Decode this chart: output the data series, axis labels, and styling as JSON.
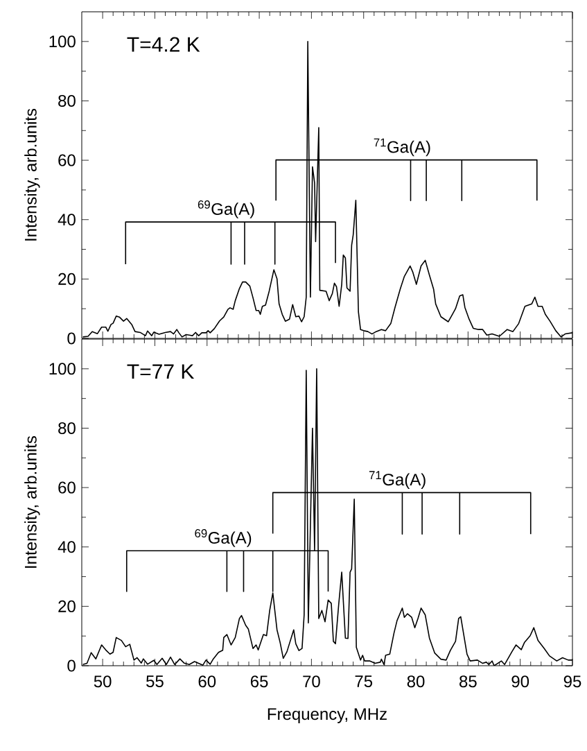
{
  "chart_data": [
    {
      "type": "line",
      "ylabel": "Intensity, arb.units",
      "xlim": [
        48,
        95
      ],
      "xticks": [
        50,
        55,
        60,
        65,
        70,
        75,
        80,
        85,
        90,
        95
      ],
      "ylim": [
        0,
        110
      ],
      "yticks": [
        0,
        20,
        40,
        60,
        80,
        100
      ],
      "tick_labels": "y",
      "line_style": "solid",
      "annotations": [
        "T=4.2 K",
        "$^{69}$Ga(A)",
        "$^{71}$Ga(A)"
      ],
      "series": [
        {
          "color": "#000000",
          "x": [
            48.1,
            48.6,
            49.0,
            49.5,
            49.9,
            50.3,
            50.5,
            50.8,
            51.0,
            51.3,
            51.6,
            52.0,
            52.3,
            52.8,
            53.1,
            53.6,
            54.1,
            54.3,
            54.7,
            54.9,
            55.4,
            56.0,
            56.5,
            56.8,
            57.1,
            57.3,
            57.6,
            58.0,
            58.3,
            58.6,
            58.9,
            59.2,
            59.5,
            59.9,
            60.1,
            60.3,
            60.7,
            61.2,
            61.6,
            62.0,
            62.2,
            62.5,
            62.7,
            63.1,
            63.4,
            63.7,
            64.1,
            64.4,
            64.7,
            64.95,
            65.1,
            65.3,
            65.6,
            65.95,
            66.4,
            66.7,
            66.9,
            67.2,
            67.5,
            67.9,
            68.2,
            68.5,
            68.8,
            69.05,
            69.3,
            69.5,
            69.65,
            69.9,
            70.1,
            70.3,
            70.4,
            70.7,
            70.8,
            71.4,
            71.7,
            72.0,
            72.2,
            72.4,
            72.65,
            72.9,
            73.05,
            73.25,
            73.4,
            73.7,
            73.85,
            74.0,
            74.25,
            74.5,
            74.7,
            75.0,
            75.4,
            75.8,
            76.2,
            76.7,
            77.1,
            77.6,
            78.0,
            78.5,
            78.9,
            79.45,
            79.7,
            80.05,
            80.5,
            80.9,
            81.3,
            81.7,
            81.9,
            82.4,
            83.1,
            83.5,
            83.8,
            84.2,
            84.5,
            84.7,
            85.1,
            85.5,
            86.0,
            86.4,
            86.8,
            87.3,
            88.0,
            88.75,
            89.3,
            89.85,
            90.45,
            91.1,
            91.4,
            91.7,
            92.1,
            92.4,
            92.85,
            93.4,
            93.9,
            94.3,
            95.0
          ],
          "values": [
            0.5,
            0.7,
            2.3,
            1.6,
            3.8,
            3.8,
            2.4,
            4.7,
            5.1,
            7.5,
            7.2,
            5.8,
            6.7,
            4.6,
            2.3,
            2.0,
            0.9,
            2.5,
            0.9,
            2.1,
            1.4,
            2.0,
            2.3,
            1.5,
            3.0,
            1.9,
            0.5,
            1.3,
            1.1,
            0.9,
            2.0,
            0.9,
            1.9,
            1.9,
            2.6,
            1.9,
            3.3,
            5.9,
            7.2,
            9.8,
            10.3,
            9.8,
            12.7,
            16.8,
            19.0,
            19.0,
            17.6,
            13.7,
            9.4,
            9.4,
            8.1,
            10.8,
            11.2,
            15.9,
            23.1,
            20.1,
            11.6,
            8.1,
            5.8,
            6.5,
            11.4,
            7.3,
            7.5,
            5.6,
            7.3,
            13.9,
            100,
            13.9,
            57.8,
            52.4,
            32.6,
            71.0,
            16.2,
            15.9,
            12.7,
            15.1,
            18.6,
            17.4,
            10.8,
            18.2,
            28.1,
            27.1,
            17.0,
            15.9,
            31.4,
            34.9,
            46.5,
            8.9,
            3.0,
            2.6,
            2.3,
            1.5,
            2.3,
            3.0,
            2.6,
            5.0,
            10.4,
            16.6,
            20.9,
            24.4,
            22.4,
            18.2,
            24.4,
            26.3,
            21.3,
            16.6,
            11.6,
            7.3,
            5.6,
            8.1,
            10.0,
            14.3,
            14.7,
            10.4,
            6.5,
            3.4,
            3.0,
            3.0,
            1.1,
            1.5,
            0.7,
            3.0,
            2.3,
            5.0,
            10.8,
            11.6,
            13.9,
            10.8,
            10.8,
            8.1,
            5.8,
            2.6,
            0.5,
            1.5,
            1.9
          ]
        },
        {
          "color": "#000000",
          "x": [
            52.2,
            52.2,
            62.3,
            62.3,
            62.3,
            63.6,
            63.6,
            63.6,
            66.5,
            66.5,
            66.5,
            72.3,
            72.3
          ],
          "values": [
            25,
            39.2,
            39.2,
            25,
            39.2,
            39.2,
            25,
            39.2,
            39.2,
            25,
            39.2,
            39.2,
            25.4
          ]
        },
        {
          "color": "#000000",
          "x": [
            66.6,
            66.6,
            79.5,
            79.5,
            79.5,
            81.0,
            81.0,
            81.0,
            84.4,
            84.4,
            84.4,
            91.6,
            91.6
          ],
          "values": [
            46.4,
            60.1,
            60.1,
            46.4,
            60.1,
            60.1,
            46.4,
            60.1,
            60.1,
            46.4,
            60.1,
            60.1,
            46.4
          ]
        }
      ]
    },
    {
      "type": "line",
      "xlabel": "Frequency, MHz",
      "ylabel": "Intensity, arb.units",
      "xlim": [
        48,
        95
      ],
      "xticks": [
        50,
        55,
        60,
        65,
        70,
        75,
        80,
        85,
        90,
        95
      ],
      "ylim": [
        0,
        110
      ],
      "yticks": [
        0,
        20,
        40,
        60,
        80,
        100
      ],
      "line_style": "solid",
      "annotations": [
        "T=77 K",
        "$^{69}$Ga(A)",
        "$^{71}$Ga(A)"
      ],
      "series": [
        {
          "color": "#000000",
          "x": [
            48.1,
            48.5,
            48.9,
            49.35,
            49.9,
            50.3,
            50.7,
            51.0,
            51.3,
            51.8,
            52.2,
            52.6,
            53.0,
            53.3,
            53.7,
            53.9,
            54.3,
            54.9,
            55.2,
            55.7,
            56.1,
            56.5,
            56.9,
            57.4,
            57.8,
            58.3,
            58.8,
            59.6,
            59.9,
            60.3,
            60.6,
            61.1,
            61.5,
            61.6,
            61.9,
            62.3,
            62.7,
            63.1,
            63.3,
            63.7,
            63.95,
            64.4,
            64.7,
            64.9,
            65.1,
            65.4,
            65.7,
            66.0,
            66.3,
            66.7,
            67.0,
            67.3,
            67.65,
            68.3,
            68.5,
            68.8,
            69.1,
            69.3,
            69.5,
            69.7,
            70.1,
            70.3,
            70.5,
            70.7,
            71.0,
            71.3,
            71.6,
            71.9,
            72.1,
            72.3,
            72.6,
            72.9,
            73.25,
            73.5,
            73.7,
            73.85,
            74.1,
            74.3,
            74.7,
            74.9,
            75.1,
            75.6,
            76.1,
            76.6,
            76.7,
            76.95,
            77.1,
            77.5,
            77.9,
            78.2,
            78.7,
            78.9,
            79.2,
            79.6,
            79.9,
            80.2,
            80.5,
            80.9,
            81.3,
            81.8,
            82.4,
            82.9,
            83.3,
            83.8,
            84.1,
            84.3,
            84.9,
            85.2,
            85.9,
            86.4,
            86.75,
            87.0,
            87.3,
            87.5,
            88.2,
            88.5,
            89.2,
            89.6,
            90.1,
            90.4,
            90.95,
            91.3,
            91.7,
            92.3,
            92.8,
            93.5,
            94.05,
            94.6,
            95.0
          ],
          "values": [
            0.4,
            0.8,
            4.4,
            2.3,
            7.0,
            5.3,
            3.9,
            4.5,
            9.5,
            8.5,
            6.4,
            7.2,
            1.9,
            2.7,
            0.9,
            2.3,
            0.5,
            1.8,
            0.4,
            2.5,
            0.4,
            2.9,
            0.4,
            2.3,
            0.9,
            0.4,
            1.4,
            0.2,
            1.9,
            0.5,
            2.3,
            4.5,
            5.2,
            9.5,
            10.5,
            7.0,
            9.5,
            15.9,
            16.9,
            13.6,
            12.4,
            5.8,
            7.0,
            5.3,
            7.4,
            10.5,
            10.1,
            18.6,
            24.5,
            12.1,
            7.8,
            2.5,
            4.7,
            12.1,
            7.4,
            5.1,
            5.8,
            17.1,
            99.5,
            14.4,
            80.0,
            38.9,
            100,
            15.9,
            18.6,
            14.8,
            22.1,
            21.0,
            8.2,
            7.4,
            20.2,
            31.5,
            9.3,
            9.2,
            31.5,
            32.6,
            56.1,
            6.2,
            1.9,
            3.5,
            1.6,
            1.6,
            0.8,
            1.2,
            2.2,
            0.4,
            3.5,
            3.9,
            10.9,
            15.2,
            19.4,
            16.3,
            17.5,
            16.3,
            12.8,
            15.9,
            19.4,
            17.1,
            9.3,
            4.3,
            2.2,
            1.9,
            5.1,
            8.2,
            15.9,
            16.5,
            3.9,
            1.6,
            1.9,
            0.8,
            1.2,
            0.4,
            1.6,
            0,
            1.6,
            0.4,
            4.7,
            7.0,
            5.4,
            7.8,
            10.1,
            12.8,
            8.5,
            5.8,
            3.3,
            1.6,
            2.7,
            1.9,
            1.9
          ]
        },
        {
          "color": "#000000",
          "x": [
            52.3,
            52.3,
            61.9,
            61.9,
            61.9,
            63.5,
            63.5,
            63.5,
            66.3,
            66.3,
            66.3,
            71.6,
            71.6
          ],
          "values": [
            24.9,
            38.7,
            38.7,
            25,
            38.7,
            38.7,
            25,
            38.7,
            38.7,
            25,
            38.7,
            38.7,
            25
          ]
        },
        {
          "color": "#000000",
          "x": [
            66.3,
            66.3,
            78.7,
            78.7,
            78.7,
            80.6,
            80.6,
            80.6,
            84.2,
            84.2,
            84.2,
            91.0,
            91.0
          ],
          "values": [
            44.5,
            58.3,
            58.3,
            44.3,
            58.3,
            58.3,
            44.3,
            58.3,
            58.3,
            44.3,
            58.3,
            58.3,
            44.3
          ]
        }
      ]
    }
  ]
}
